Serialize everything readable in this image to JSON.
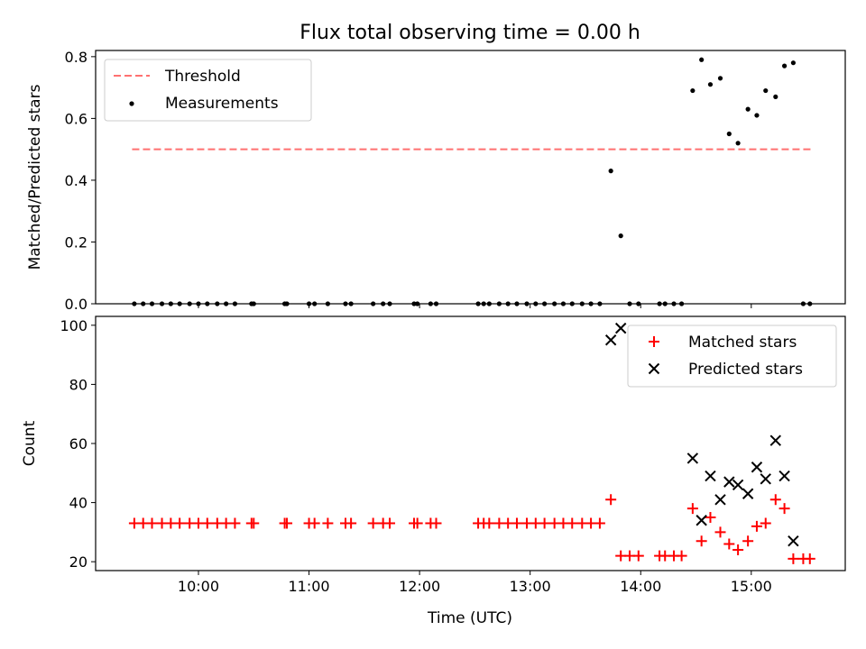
{
  "figure": {
    "title": "Flux total observing time = 0.00 h",
    "xlabel": "Time (UTC)",
    "x_ticks": [
      "10:00",
      "11:00",
      "12:00",
      "13:00",
      "14:00",
      "15:00"
    ],
    "x_tick_hours": [
      10,
      11,
      12,
      13,
      14,
      15
    ]
  },
  "chart_data": [
    {
      "type": "scatter",
      "ylabel": "Matched/Predicted stars",
      "ylim": [
        0,
        0.82
      ],
      "xlim_hours": [
        9.07,
        15.85
      ],
      "y_ticks": [
        "0.0",
        "0.2",
        "0.4",
        "0.6",
        "0.8"
      ],
      "y_tick_values": [
        0,
        0.2,
        0.4,
        0.6,
        0.8
      ],
      "legend": {
        "position": "upper-left",
        "entries": [
          "Threshold",
          "Measurements"
        ]
      },
      "threshold": {
        "name": "Threshold",
        "y": 0.5,
        "x_range_hours": [
          9.4,
          15.55
        ],
        "color": "#ff7070",
        "style": "dashed"
      },
      "measurements": {
        "name": "Measurements",
        "color": "#000000",
        "points": [
          [
            9.42,
            0
          ],
          [
            9.5,
            0
          ],
          [
            9.58,
            0
          ],
          [
            9.67,
            0
          ],
          [
            9.75,
            0
          ],
          [
            9.83,
            0
          ],
          [
            9.92,
            0
          ],
          [
            10.0,
            0
          ],
          [
            10.08,
            0
          ],
          [
            10.17,
            0
          ],
          [
            10.25,
            0
          ],
          [
            10.33,
            0
          ],
          [
            10.48,
            0
          ],
          [
            10.5,
            0
          ],
          [
            10.78,
            0
          ],
          [
            10.8,
            0
          ],
          [
            11.0,
            0
          ],
          [
            11.05,
            0
          ],
          [
            11.17,
            0
          ],
          [
            11.33,
            0
          ],
          [
            11.38,
            0
          ],
          [
            11.58,
            0
          ],
          [
            11.67,
            0
          ],
          [
            11.73,
            0
          ],
          [
            11.95,
            0
          ],
          [
            11.98,
            0
          ],
          [
            12.1,
            0
          ],
          [
            12.15,
            0
          ],
          [
            12.53,
            0
          ],
          [
            12.58,
            0
          ],
          [
            12.63,
            0
          ],
          [
            12.72,
            0
          ],
          [
            12.8,
            0
          ],
          [
            12.88,
            0
          ],
          [
            12.97,
            0
          ],
          [
            13.05,
            0
          ],
          [
            13.13,
            0
          ],
          [
            13.22,
            0
          ],
          [
            13.3,
            0
          ],
          [
            13.38,
            0
          ],
          [
            13.47,
            0
          ],
          [
            13.55,
            0
          ],
          [
            13.63,
            0
          ],
          [
            13.73,
            0.43
          ],
          [
            13.82,
            0.22
          ],
          [
            13.9,
            0
          ],
          [
            13.98,
            0
          ],
          [
            14.17,
            0
          ],
          [
            14.22,
            0
          ],
          [
            14.3,
            0
          ],
          [
            14.37,
            0
          ],
          [
            14.47,
            0.69
          ],
          [
            14.55,
            0.79
          ],
          [
            14.63,
            0.71
          ],
          [
            14.72,
            0.73
          ],
          [
            14.8,
            0.55
          ],
          [
            14.88,
            0.52
          ],
          [
            14.97,
            0.63
          ],
          [
            15.05,
            0.61
          ],
          [
            15.13,
            0.69
          ],
          [
            15.22,
            0.67
          ],
          [
            15.3,
            0.77
          ],
          [
            15.38,
            0.78
          ],
          [
            15.47,
            0
          ],
          [
            15.53,
            0
          ]
        ]
      }
    },
    {
      "type": "scatter",
      "ylabel": "Count",
      "ylim": [
        17,
        103
      ],
      "xlim_hours": [
        9.07,
        15.85
      ],
      "y_ticks": [
        "20",
        "40",
        "60",
        "80",
        "100"
      ],
      "y_tick_values": [
        20,
        40,
        60,
        80,
        100
      ],
      "legend": {
        "position": "upper-right",
        "entries": [
          "Matched stars",
          "Predicted stars"
        ]
      },
      "series": [
        {
          "name": "Matched stars",
          "marker": "plus",
          "color": "#ff0000",
          "points": [
            [
              9.42,
              33
            ],
            [
              9.5,
              33
            ],
            [
              9.58,
              33
            ],
            [
              9.67,
              33
            ],
            [
              9.75,
              33
            ],
            [
              9.83,
              33
            ],
            [
              9.92,
              33
            ],
            [
              10.0,
              33
            ],
            [
              10.08,
              33
            ],
            [
              10.17,
              33
            ],
            [
              10.25,
              33
            ],
            [
              10.33,
              33
            ],
            [
              10.48,
              33
            ],
            [
              10.5,
              33
            ],
            [
              10.78,
              33
            ],
            [
              10.8,
              33
            ],
            [
              11.0,
              33
            ],
            [
              11.05,
              33
            ],
            [
              11.17,
              33
            ],
            [
              11.33,
              33
            ],
            [
              11.38,
              33
            ],
            [
              11.58,
              33
            ],
            [
              11.67,
              33
            ],
            [
              11.73,
              33
            ],
            [
              11.95,
              33
            ],
            [
              11.98,
              33
            ],
            [
              12.1,
              33
            ],
            [
              12.15,
              33
            ],
            [
              12.53,
              33
            ],
            [
              12.58,
              33
            ],
            [
              12.63,
              33
            ],
            [
              12.72,
              33
            ],
            [
              12.8,
              33
            ],
            [
              12.88,
              33
            ],
            [
              12.97,
              33
            ],
            [
              13.05,
              33
            ],
            [
              13.13,
              33
            ],
            [
              13.22,
              33
            ],
            [
              13.3,
              33
            ],
            [
              13.38,
              33
            ],
            [
              13.47,
              33
            ],
            [
              13.55,
              33
            ],
            [
              13.63,
              33
            ],
            [
              13.73,
              41
            ],
            [
              13.82,
              22
            ],
            [
              13.9,
              22
            ],
            [
              13.98,
              22
            ],
            [
              14.17,
              22
            ],
            [
              14.22,
              22
            ],
            [
              14.3,
              22
            ],
            [
              14.37,
              22
            ],
            [
              14.47,
              38
            ],
            [
              14.55,
              27
            ],
            [
              14.63,
              35
            ],
            [
              14.72,
              30
            ],
            [
              14.8,
              26
            ],
            [
              14.88,
              24
            ],
            [
              14.97,
              27
            ],
            [
              15.05,
              32
            ],
            [
              15.13,
              33
            ],
            [
              15.22,
              41
            ],
            [
              15.3,
              38
            ],
            [
              15.38,
              21
            ],
            [
              15.47,
              21
            ],
            [
              15.53,
              21
            ]
          ]
        },
        {
          "name": "Predicted stars",
          "marker": "x",
          "color": "#000000",
          "points": [
            [
              13.73,
              95
            ],
            [
              13.82,
              99
            ],
            [
              14.47,
              55
            ],
            [
              14.55,
              34
            ],
            [
              14.63,
              49
            ],
            [
              14.72,
              41
            ],
            [
              14.8,
              47
            ],
            [
              14.88,
              46
            ],
            [
              14.97,
              43
            ],
            [
              15.05,
              52
            ],
            [
              15.13,
              48
            ],
            [
              15.22,
              61
            ],
            [
              15.3,
              49
            ],
            [
              15.38,
              27
            ]
          ]
        }
      ]
    }
  ]
}
